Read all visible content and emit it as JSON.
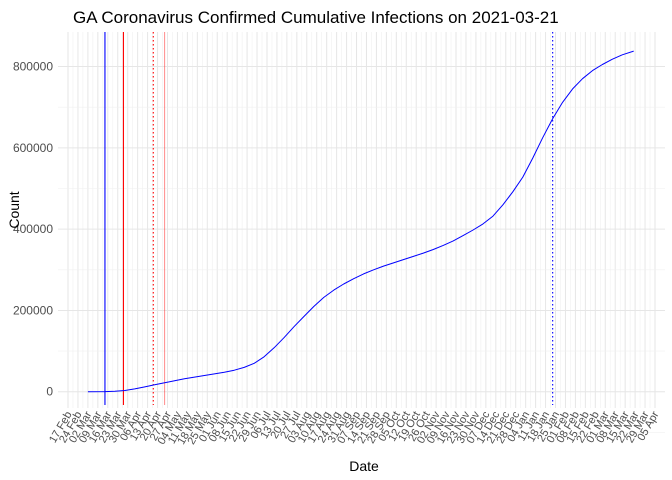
{
  "chart_data": {
    "type": "line",
    "title": "GA Coronavirus Confirmed Cumulative Infections on 2021-03-21",
    "xlabel": "Date",
    "ylabel": "Count",
    "x_range": [
      "2020-02-17",
      "2021-04-05"
    ],
    "ylim": [
      -40000,
      885000
    ],
    "y_ticks": [
      0,
      200000,
      400000,
      600000,
      800000
    ],
    "y_tick_labels": [
      "0",
      "200000",
      "400000",
      "600000",
      "800000"
    ],
    "x_tick_labels": [
      "17 Feb",
      "24 Feb",
      "02 Mar",
      "09 Mar",
      "16 Mar",
      "23 Mar",
      "30 Mar",
      "06 Apr",
      "13 Apr",
      "20 Apr",
      "27 Apr",
      "04 May",
      "11 May",
      "18 May",
      "25 May",
      "01 Jun",
      "08 Jun",
      "15 Jun",
      "22 Jun",
      "29 Jun",
      "06 Jul",
      "13 Jul",
      "20 Jul",
      "27 Jul",
      "03 Aug",
      "10 Aug",
      "17 Aug",
      "24 Aug",
      "31 Aug",
      "07 Sep",
      "14 Sep",
      "21 Sep",
      "28 Sep",
      "05 Oct",
      "12 Oct",
      "19 Oct",
      "26 Oct",
      "02 Nov",
      "09 Nov",
      "16 Nov",
      "23 Nov",
      "30 Nov",
      "07 Dec",
      "14 Dec",
      "21 Dec",
      "28 Dec",
      "04 Jan",
      "11 Jan",
      "18 Jan",
      "25 Jan",
      "01 Feb",
      "08 Feb",
      "15 Feb",
      "22 Feb",
      "01 Mar",
      "08 Mar",
      "15 Mar",
      "22 Mar",
      "29 Mar",
      "05 Apr"
    ],
    "x_tick_start": "2020-02-17",
    "grid": true,
    "series": [
      {
        "color": "#0000ff",
        "points": [
          [
            "2020-03-02",
            0
          ],
          [
            "2020-03-14",
            300
          ],
          [
            "2020-03-21",
            1000
          ],
          [
            "2020-03-28",
            3000
          ],
          [
            "2020-04-04",
            7000
          ],
          [
            "2020-04-11",
            12000
          ],
          [
            "2020-04-18",
            17000
          ],
          [
            "2020-04-25",
            22000
          ],
          [
            "2020-05-02",
            27000
          ],
          [
            "2020-05-09",
            32000
          ],
          [
            "2020-05-16",
            36000
          ],
          [
            "2020-05-23",
            40000
          ],
          [
            "2020-05-30",
            44000
          ],
          [
            "2020-06-06",
            48000
          ],
          [
            "2020-06-13",
            53000
          ],
          [
            "2020-06-20",
            60000
          ],
          [
            "2020-06-27",
            70000
          ],
          [
            "2020-07-04",
            86000
          ],
          [
            "2020-07-11",
            108000
          ],
          [
            "2020-07-18",
            133000
          ],
          [
            "2020-07-25",
            160000
          ],
          [
            "2020-08-01",
            185000
          ],
          [
            "2020-08-08",
            210000
          ],
          [
            "2020-08-15",
            232000
          ],
          [
            "2020-08-22",
            250000
          ],
          [
            "2020-08-29",
            265000
          ],
          [
            "2020-09-05",
            278000
          ],
          [
            "2020-09-12",
            290000
          ],
          [
            "2020-09-19",
            300000
          ],
          [
            "2020-09-26",
            309000
          ],
          [
            "2020-10-03",
            317000
          ],
          [
            "2020-10-10",
            325000
          ],
          [
            "2020-10-17",
            333000
          ],
          [
            "2020-10-24",
            341000
          ],
          [
            "2020-10-31",
            350000
          ],
          [
            "2020-11-07",
            360000
          ],
          [
            "2020-11-14",
            371000
          ],
          [
            "2020-11-21",
            384000
          ],
          [
            "2020-11-28",
            398000
          ],
          [
            "2020-12-05",
            413000
          ],
          [
            "2020-12-12",
            432000
          ],
          [
            "2020-12-19",
            460000
          ],
          [
            "2020-12-26",
            492000
          ],
          [
            "2021-01-02",
            528000
          ],
          [
            "2021-01-09",
            575000
          ],
          [
            "2021-01-16",
            625000
          ],
          [
            "2021-01-23",
            672000
          ],
          [
            "2021-01-30",
            712000
          ],
          [
            "2021-02-06",
            745000
          ],
          [
            "2021-02-13",
            770000
          ],
          [
            "2021-02-20",
            790000
          ],
          [
            "2021-02-27",
            805000
          ],
          [
            "2021-03-06",
            818000
          ],
          [
            "2021-03-13",
            829000
          ],
          [
            "2021-03-21",
            838000
          ]
        ]
      }
    ],
    "vlines": [
      {
        "date": "2020-03-14",
        "color": "#0000ff",
        "style": "solid"
      },
      {
        "date": "2020-03-27",
        "color": "#ff0000",
        "style": "solid"
      },
      {
        "date": "2020-04-17",
        "color": "#ff0000",
        "style": "dotted"
      },
      {
        "date": "2020-04-25",
        "color": "#ff0000",
        "style": "solid",
        "light": true
      },
      {
        "date": "2021-01-23",
        "color": "#0000ff",
        "style": "dotted"
      }
    ]
  }
}
